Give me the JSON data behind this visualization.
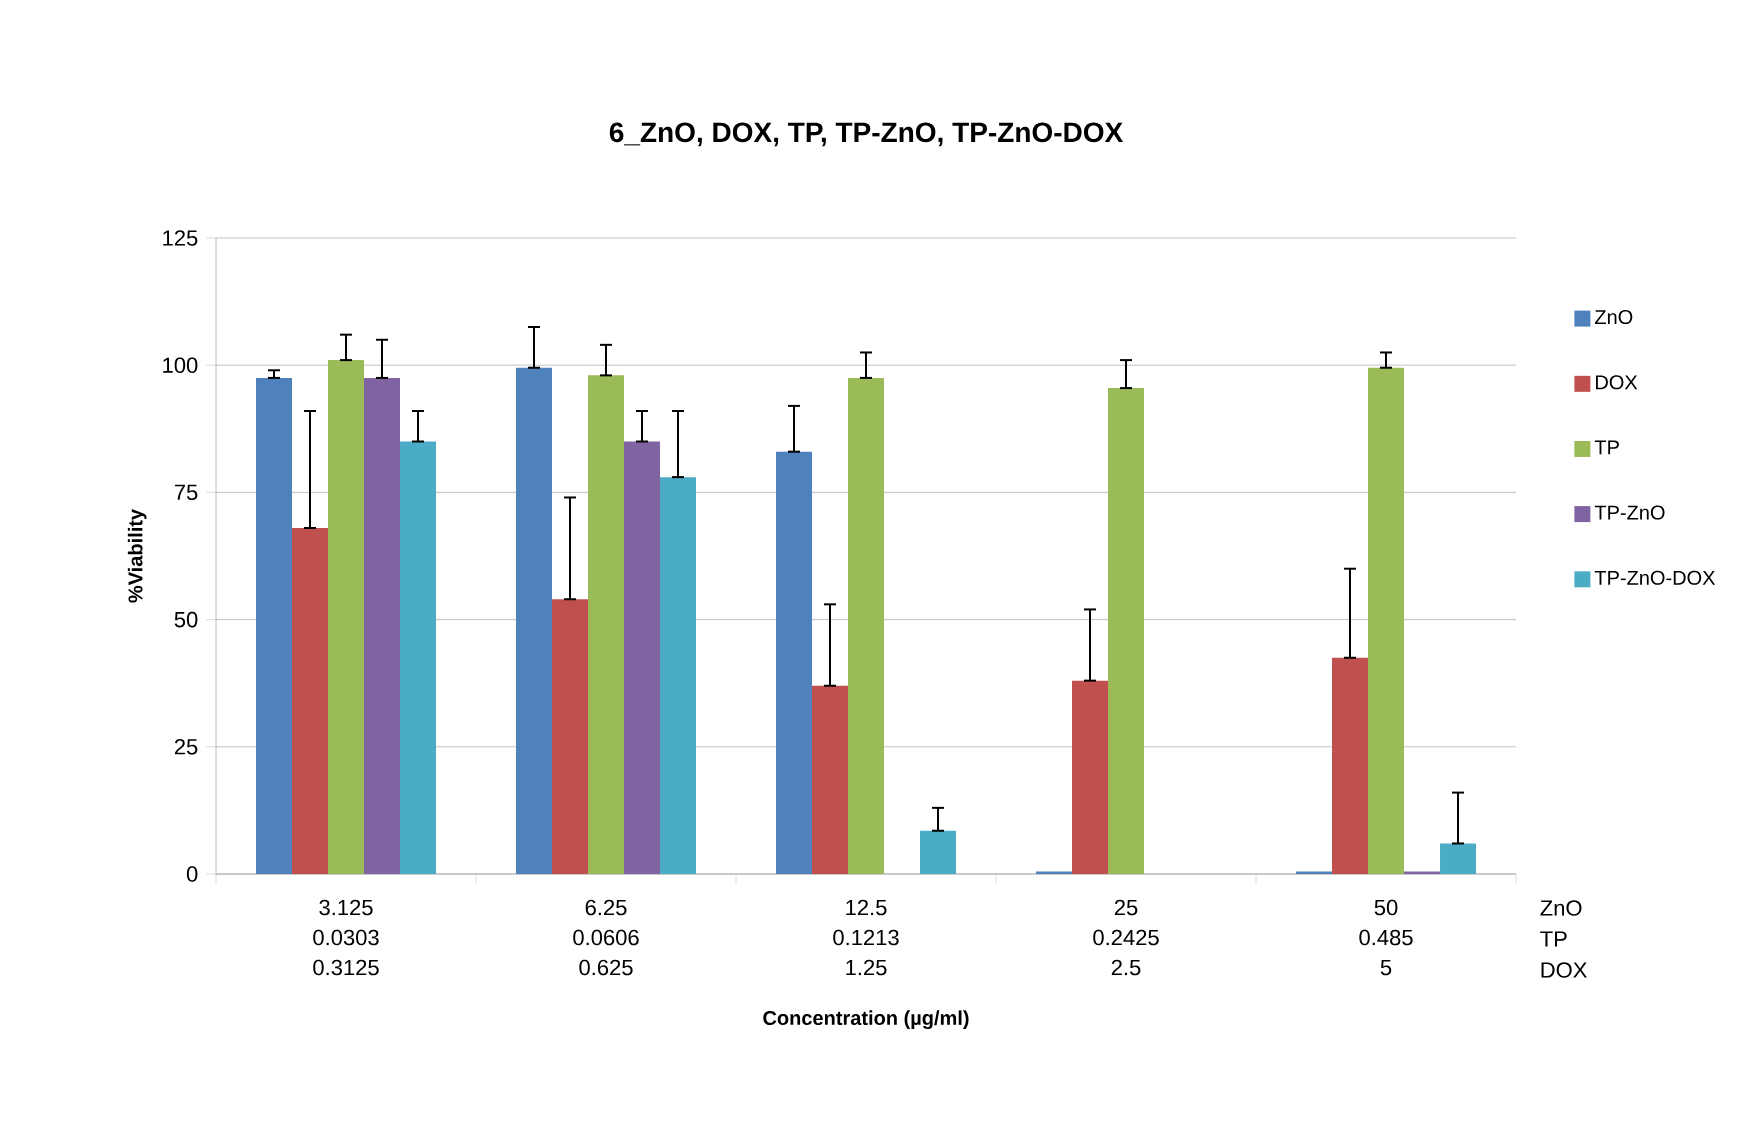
{
  "chart_data": {
    "type": "bar",
    "title": "6_ZnO, DOX, TP, TP-ZnO, TP-ZnO-DOX",
    "xlabel": "Concentration (µg/ml)",
    "ylabel": "%Viability",
    "categories": [
      "3.125",
      "6.25",
      "12.5",
      "25",
      "50"
    ],
    "annotations": [
      "ZnO",
      "0.0303",
      "0.0606",
      "0.1213",
      "0.2425",
      "0.485",
      "TP",
      "0.3125",
      "0.625",
      "1.25",
      "2.5",
      "5",
      "DOX"
    ],
    "series": [
      {
        "name": "ZnO",
        "color": "#4f81bd",
        "values": [
          97.5,
          99.5,
          83,
          0.5,
          0.5
        ],
        "errors": [
          [
            97.5,
            99
          ],
          [
            99.5,
            107.5
          ],
          [
            83,
            92
          ],
          null,
          null
        ]
      },
      {
        "name": "DOX",
        "color": "#c0504d",
        "values": [
          68,
          54,
          37,
          38,
          42.5
        ],
        "errors": [
          [
            68,
            91
          ],
          [
            54,
            74
          ],
          [
            37,
            53
          ],
          [
            38,
            52
          ],
          [
            42.5,
            60
          ]
        ]
      },
      {
        "name": "TP",
        "color": "#9bbb59",
        "values": [
          101,
          98,
          97.5,
          95.5,
          99.5
        ],
        "errors": [
          [
            101,
            106
          ],
          [
            98,
            104
          ],
          [
            97.5,
            102.5
          ],
          [
            95.5,
            101
          ],
          [
            99.5,
            102.5
          ]
        ]
      },
      {
        "name": "TP-ZnO",
        "color": "#8064a2",
        "values": [
          97.5,
          85,
          null,
          null,
          0.5
        ],
        "errors": [
          [
            97.5,
            105
          ],
          [
            85,
            91
          ],
          null,
          null,
          null
        ]
      },
      {
        "name": "TP-ZnO-DOX",
        "color": "#4bacc6",
        "values": [
          85,
          78,
          8.5,
          null,
          6
        ],
        "errors": [
          [
            85,
            91
          ],
          [
            78,
            91
          ],
          [
            8.5,
            13
          ],
          null,
          [
            6,
            16
          ]
        ]
      }
    ],
    "ylim": [
      0,
      125
    ],
    "yticks": [
      0,
      25,
      50,
      75,
      100,
      125
    ],
    "grid": "y",
    "legend": "right"
  }
}
